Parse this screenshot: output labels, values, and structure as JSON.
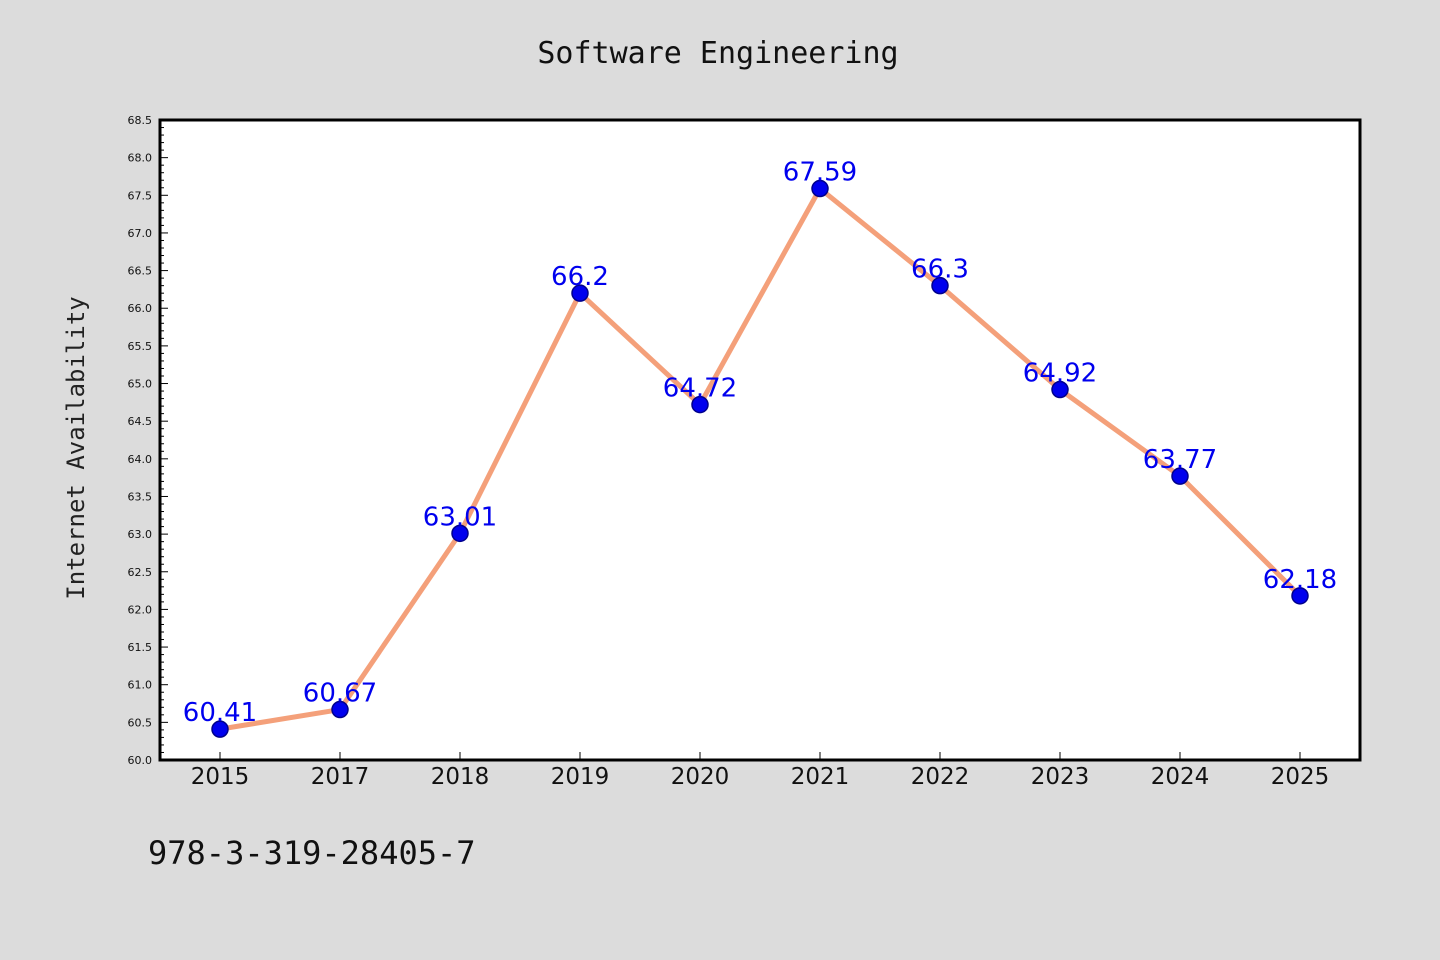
{
  "chart_data": {
    "type": "line",
    "title": "Software Engineering",
    "xlabel": "",
    "ylabel": "Internet Availability",
    "x": [
      "2015",
      "2017",
      "2018",
      "2019",
      "2020",
      "2021",
      "2022",
      "2023",
      "2024",
      "2025"
    ],
    "series": [
      {
        "values": [
          60.41,
          60.67,
          63.01,
          66.2,
          64.72,
          67.59,
          66.3,
          64.92,
          63.77,
          62.18
        ]
      }
    ],
    "data_labels": [
      "60.41",
      "60.67",
      "63.01",
      "66.2",
      "64.72",
      "67.59",
      "66.3",
      "64.92",
      "63.77",
      "62.18"
    ],
    "ylim": [
      60.0,
      68.5
    ],
    "yticks": [
      "60.0",
      "60.5",
      "61.0",
      "61.5",
      "62.0",
      "62.5",
      "63.0",
      "63.5",
      "64.0",
      "64.5",
      "65.0",
      "65.5",
      "66.0",
      "66.5",
      "67.0",
      "67.5",
      "68.0",
      "68.5"
    ],
    "grid": false,
    "legend": "none",
    "colors": {
      "line": "#f4a07a",
      "marker": "#0000ee",
      "marker_edge": "#00008b",
      "data_label": "#0000ee",
      "background": "#dcdcdc",
      "plot_area": "#ffffff"
    },
    "annotation": "978-3-319-28405-7"
  }
}
